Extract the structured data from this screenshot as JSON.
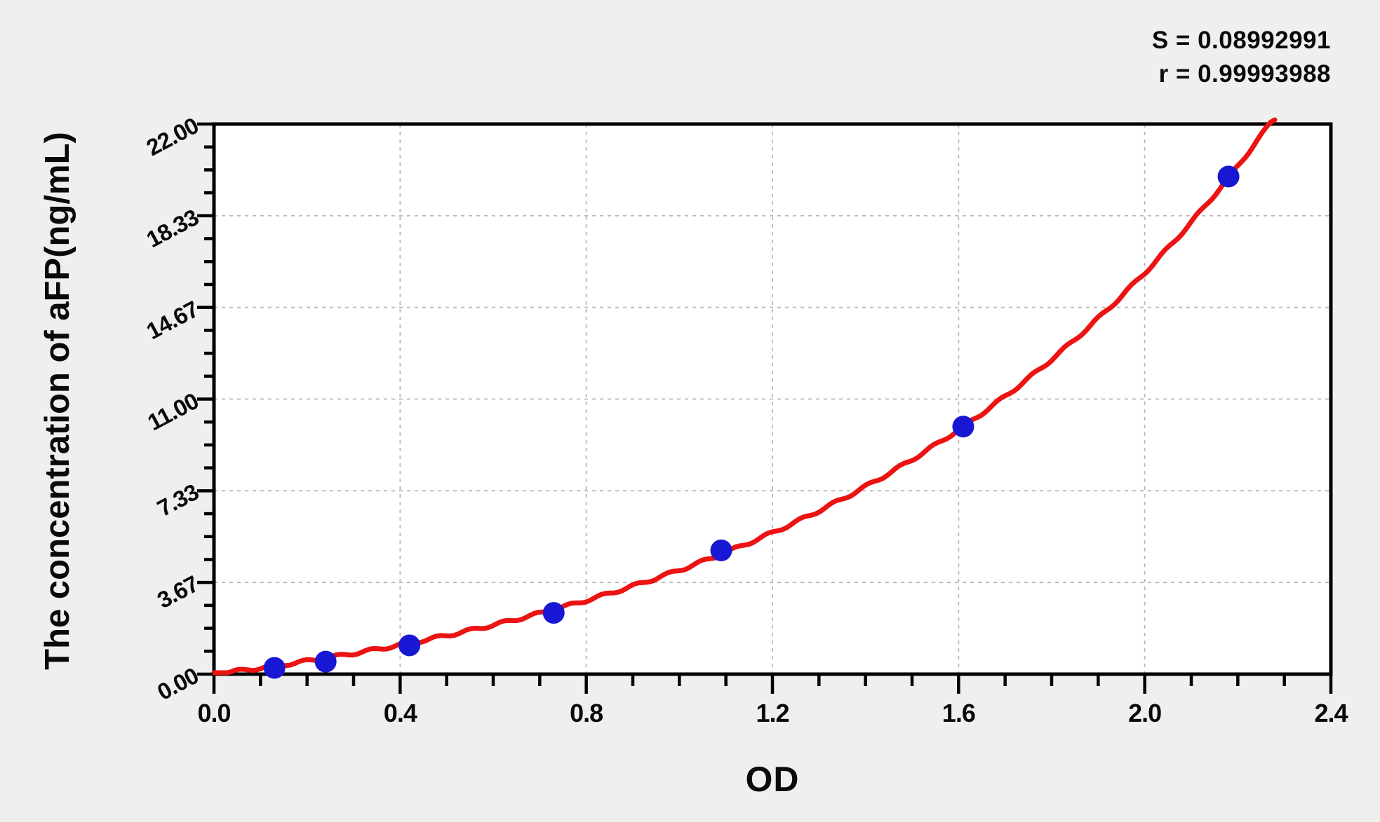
{
  "figure": {
    "background_color": "#efefef",
    "plot_background_color": "#ffffff",
    "axis_color": "#000000",
    "grid_color": "#b9b9b9",
    "text_color": "#0a0a0a"
  },
  "chart_data": {
    "type": "scatter",
    "title": "",
    "xlabel": "OD",
    "ylabel": "The concentration of aFP(ng/mL)",
    "x_axis": {
      "min": 0,
      "max": 2.4,
      "tick_labels": [
        "0.0",
        "0.4",
        "0.8",
        "1.2",
        "1.6",
        "2.0",
        "2.4"
      ],
      "minor_ticks_per_major": 4
    },
    "y_axis": {
      "min": 0,
      "max": 22,
      "tick_labels": [
        "0.00",
        "3.67",
        "7.33",
        "11.00",
        "14.67",
        "18.33",
        "22.00"
      ],
      "minor_ticks_per_major": 4
    },
    "grid": {
      "show": true,
      "style": "dashed"
    },
    "series": [
      {
        "name": "standard-points",
        "type": "scatter",
        "color": "#1717d4",
        "marker": "circle",
        "points": [
          {
            "x": 0.13,
            "y": 0.25
          },
          {
            "x": 0.24,
            "y": 0.5
          },
          {
            "x": 0.42,
            "y": 1.15
          },
          {
            "x": 0.73,
            "y": 2.45
          },
          {
            "x": 1.09,
            "y": 4.95
          },
          {
            "x": 1.61,
            "y": 9.9
          },
          {
            "x": 2.18,
            "y": 19.9
          }
        ]
      },
      {
        "name": "fitted-curve",
        "type": "line",
        "color": "#ec1313",
        "model": "y = a*(exp(k*x)-1)",
        "a": 2.24,
        "k": 1.05,
        "x_start": 0
      }
    ],
    "stats": {
      "s_line": "S = 0.08992991",
      "r_line": "r = 0.99993988"
    }
  }
}
